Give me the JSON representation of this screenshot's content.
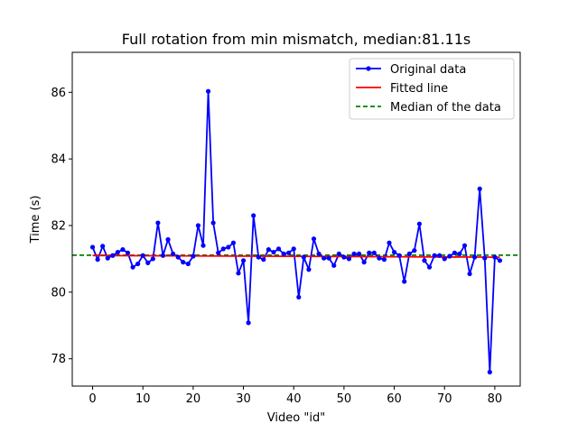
{
  "chart_data": {
    "type": "line",
    "title": "Full rotation from min mismatch, median:81.11s",
    "xlabel": "Video \"id\"",
    "ylabel": "Time (s)",
    "xlim": [
      -4.05,
      85.05
    ],
    "ylim": [
      77.18,
      87.2
    ],
    "xticks": [
      0,
      10,
      20,
      30,
      40,
      50,
      60,
      70,
      80
    ],
    "yticks": [
      78,
      80,
      82,
      84,
      86
    ],
    "grid": false,
    "legend_position": "top-right",
    "series": [
      {
        "name": "Original data",
        "color": "#0000ff",
        "marker": "circle",
        "x": [
          0,
          1,
          2,
          3,
          4,
          5,
          6,
          7,
          8,
          9,
          10,
          11,
          12,
          13,
          14,
          15,
          16,
          17,
          18,
          19,
          20,
          21,
          22,
          23,
          24,
          25,
          26,
          27,
          28,
          29,
          30,
          31,
          32,
          33,
          34,
          35,
          36,
          37,
          38,
          39,
          40,
          41,
          42,
          43,
          44,
          45,
          46,
          47,
          48,
          49,
          50,
          51,
          52,
          53,
          54,
          55,
          56,
          57,
          58,
          59,
          60,
          61,
          62,
          63,
          64,
          65,
          66,
          67,
          68,
          69,
          70,
          71,
          72,
          73,
          74,
          75,
          76,
          77,
          78,
          79,
          80,
          81
        ],
        "y": [
          81.35,
          80.98,
          81.38,
          81.02,
          81.1,
          81.2,
          81.28,
          81.18,
          80.75,
          80.85,
          81.1,
          80.88,
          81.0,
          82.08,
          81.1,
          81.58,
          81.15,
          81.05,
          80.9,
          80.85,
          81.08,
          82.0,
          81.4,
          86.03,
          82.08,
          81.18,
          81.3,
          81.35,
          81.48,
          80.57,
          80.95,
          79.08,
          82.3,
          81.05,
          80.98,
          81.28,
          81.2,
          81.3,
          81.15,
          81.18,
          81.3,
          79.85,
          81.05,
          80.68,
          81.6,
          81.15,
          81.02,
          81.02,
          80.8,
          81.15,
          81.05,
          81.0,
          81.15,
          81.15,
          80.9,
          81.18,
          81.18,
          81.02,
          80.98,
          81.48,
          81.2,
          81.1,
          80.32,
          81.15,
          81.25,
          82.05,
          80.95,
          80.75,
          81.1,
          81.1,
          81.0,
          81.08,
          81.18,
          81.15,
          81.4,
          80.55,
          81.05,
          83.1,
          81.02,
          77.6,
          81.05,
          80.95
        ]
      },
      {
        "name": "Fitted line",
        "color": "#ff0000",
        "x": [
          0,
          81
        ],
        "y": [
          81.1,
          81.05
        ]
      },
      {
        "name": "Median of the data",
        "color": "#008000",
        "style": "dashed",
        "y": 81.11
      }
    ]
  }
}
